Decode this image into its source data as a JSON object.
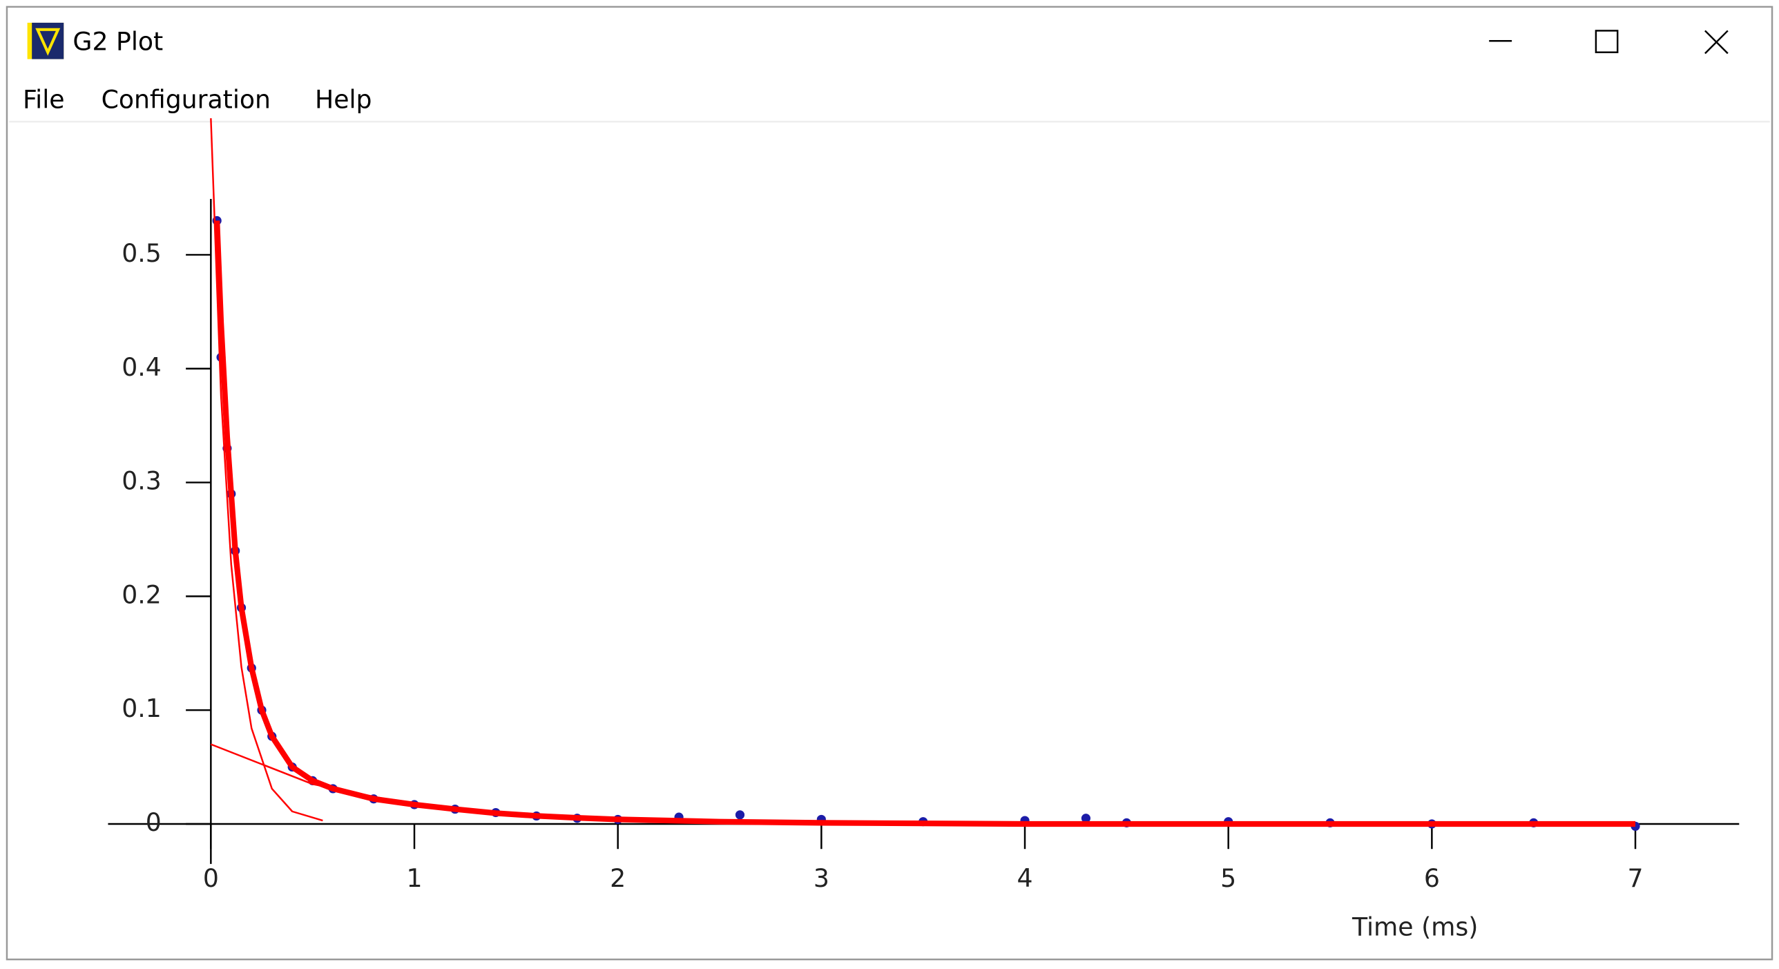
{
  "window": {
    "title": "G2 Plot",
    "menu": [
      "File",
      "Configuration",
      "Help"
    ]
  },
  "chart_data": {
    "type": "scatter",
    "xlabel": "Time (ms)",
    "xlim": [
      -0.98,
      7.51
    ],
    "ylim": [
      -0.115,
      0.616
    ],
    "xticks": [
      0,
      1,
      2,
      3,
      4,
      5,
      6,
      7
    ],
    "yticks": [
      0,
      0.1,
      0.2,
      0.3,
      0.4,
      0.5
    ],
    "series": [
      {
        "type": "scatter",
        "color": "#1c1ca8",
        "x": [
          0.03,
          0.05,
          0.08,
          0.1,
          0.12,
          0.15,
          0.2,
          0.25,
          0.3,
          0.4,
          0.5,
          0.6,
          0.8,
          1.0,
          1.2,
          1.4,
          1.6,
          1.8,
          2.0,
          2.3,
          2.6,
          3.0,
          3.5,
          4.0,
          4.3,
          4.5,
          5.0,
          5.5,
          6.0,
          6.5,
          7.0
        ],
        "values": [
          0.53,
          0.41,
          0.33,
          0.29,
          0.24,
          0.19,
          0.137,
          0.1,
          0.077,
          0.05,
          0.038,
          0.031,
          0.022,
          0.017,
          0.013,
          0.01,
          0.007,
          0.005,
          0.004,
          0.006,
          0.008,
          0.004,
          0.002,
          0.003,
          0.005,
          0.001,
          0.002,
          0.001,
          0.0,
          0.001,
          -0.002
        ]
      },
      {
        "type": "line",
        "color": "#ff0000",
        "width": 5,
        "x": [
          0.03,
          0.05,
          0.08,
          0.1,
          0.12,
          0.15,
          0.2,
          0.25,
          0.3,
          0.4,
          0.5,
          0.6,
          0.8,
          1.0,
          1.2,
          1.4,
          1.6,
          1.8,
          2.0,
          2.5,
          3.0,
          4.0,
          5.0,
          6.0,
          7.0
        ],
        "values": [
          0.53,
          0.44,
          0.34,
          0.29,
          0.24,
          0.19,
          0.137,
          0.1,
          0.077,
          0.05,
          0.038,
          0.031,
          0.022,
          0.017,
          0.013,
          0.0095,
          0.0071,
          0.0054,
          0.004,
          0.002,
          0.001,
          0.0,
          0.0,
          0.0,
          0.0
        ]
      },
      {
        "type": "line",
        "color": "#ff0000",
        "width": 1.5,
        "x": [
          0,
          0.05,
          0.1,
          0.15,
          0.2,
          0.3,
          0.4,
          0.55
        ],
        "values": [
          0.62,
          0.376,
          0.228,
          0.138,
          0.084,
          0.031,
          0.011,
          0.003
        ]
      },
      {
        "type": "line",
        "color": "#ff0000",
        "width": 1.5,
        "x": [
          0,
          0.5,
          1.0,
          1.5,
          2.0,
          2.5
        ],
        "values": [
          0.07,
          0.035,
          0.0168,
          0.008,
          0.004,
          0.002
        ]
      }
    ]
  }
}
